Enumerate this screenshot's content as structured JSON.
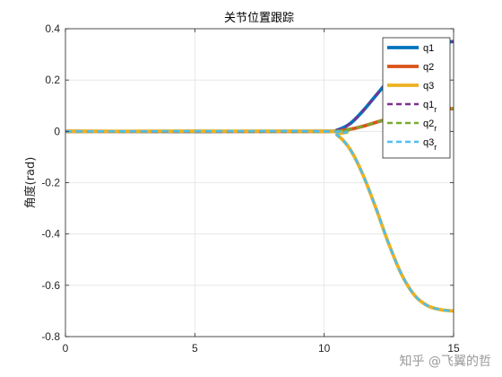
{
  "chart_data": {
    "type": "line",
    "title": "关节位置跟踪",
    "xlabel": "",
    "ylabel": "角度(rad)",
    "xlim": [
      0,
      15
    ],
    "ylim": [
      -0.8,
      0.4
    ],
    "xticks": [
      0,
      5,
      10,
      15
    ],
    "yticks": [
      0.4,
      0.2,
      0,
      -0.2,
      -0.4,
      -0.6,
      -0.8
    ],
    "ytick_labels": [
      "0.4",
      "0.2",
      "0",
      "-0.2",
      "-0.4",
      "-0.6",
      "-0.8"
    ],
    "grid": true,
    "legend_position": "top-right",
    "series": [
      {
        "name": "q1",
        "style": "solid",
        "color": "#0072BD",
        "x": [
          0,
          10,
          10.5,
          11,
          11.5,
          12,
          12.5,
          13,
          13.5,
          14,
          14.5,
          15
        ],
        "y": [
          0,
          0,
          0.005,
          0.03,
          0.08,
          0.14,
          0.2,
          0.26,
          0.305,
          0.33,
          0.345,
          0.35
        ]
      },
      {
        "name": "q2",
        "style": "solid",
        "color": "#D95319",
        "x": [
          0,
          10,
          10.5,
          11,
          11.5,
          12,
          12.5,
          13,
          13.5,
          14,
          14.5,
          15
        ],
        "y": [
          0,
          0,
          0.002,
          0.008,
          0.02,
          0.035,
          0.05,
          0.065,
          0.077,
          0.085,
          0.088,
          0.088
        ]
      },
      {
        "name": "q3",
        "style": "solid",
        "color": "#EDB120",
        "x": [
          0,
          10,
          10.5,
          11,
          11.5,
          12,
          12.5,
          13,
          13.5,
          14,
          14.5,
          15
        ],
        "y": [
          0,
          0,
          -0.015,
          -0.07,
          -0.17,
          -0.3,
          -0.44,
          -0.56,
          -0.64,
          -0.68,
          -0.695,
          -0.7
        ]
      },
      {
        "name": "q1",
        "subscript": "r",
        "style": "dashed",
        "color": "#7E2F8E",
        "x": [
          0,
          10,
          10.5,
          11,
          11.5,
          12,
          12.5,
          13,
          13.5,
          14,
          14.5,
          15
        ],
        "y": [
          0,
          0,
          0.005,
          0.03,
          0.08,
          0.14,
          0.2,
          0.26,
          0.305,
          0.33,
          0.345,
          0.35
        ]
      },
      {
        "name": "q2",
        "subscript": "r",
        "style": "dashed",
        "color": "#77AC30",
        "x": [
          0,
          10,
          10.5,
          11,
          11.5,
          12,
          12.5,
          13,
          13.5,
          14,
          14.5,
          15
        ],
        "y": [
          0,
          0,
          0.002,
          0.008,
          0.02,
          0.035,
          0.05,
          0.065,
          0.077,
          0.085,
          0.088,
          0.088
        ]
      },
      {
        "name": "q3",
        "subscript": "r",
        "style": "dashed",
        "color": "#4DBEEE",
        "x": [
          0,
          10,
          10.5,
          11,
          11.5,
          12,
          12.5,
          13,
          13.5,
          14,
          14.5,
          15
        ],
        "y": [
          0,
          0,
          -0.015,
          -0.07,
          -0.17,
          -0.3,
          -0.44,
          -0.56,
          -0.64,
          -0.68,
          -0.695,
          -0.7
        ]
      }
    ]
  },
  "watermark": "知乎 @飞翼的哲"
}
